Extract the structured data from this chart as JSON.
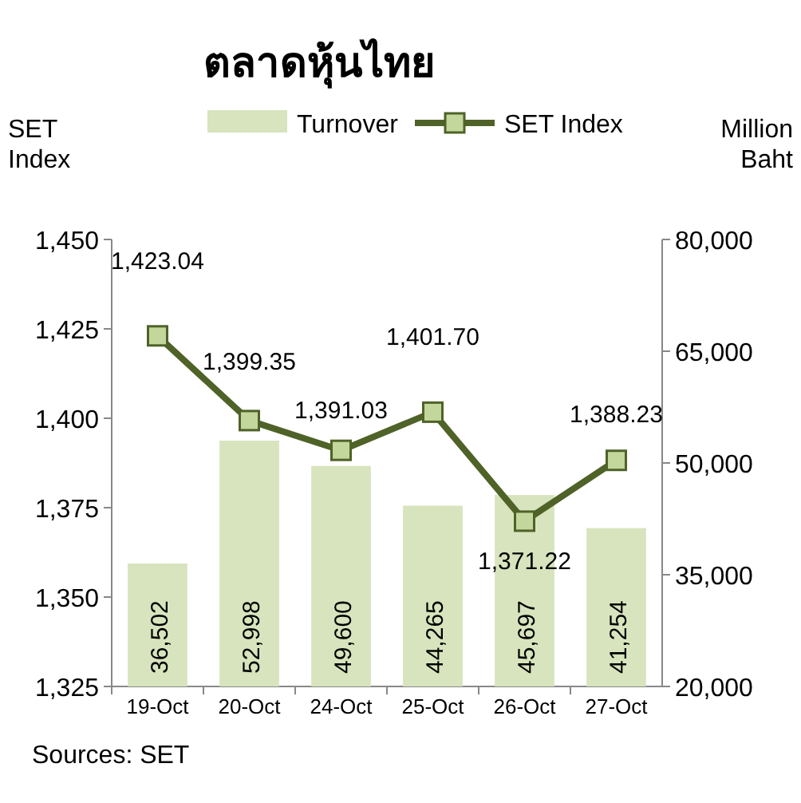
{
  "chart_data": {
    "type": "bar",
    "title": "ตลาดหุ้นไทย",
    "ylabel": "SET Index",
    "y2label": "Million Baht",
    "categories": [
      "19-Oct",
      "20-Oct",
      "24-Oct",
      "25-Oct",
      "26-Oct",
      "27-Oct"
    ],
    "series": [
      {
        "name": "Turnover",
        "axis": "y2",
        "color": "#d7e4bd",
        "values": [
          36502,
          52998,
          49600,
          44265,
          45697,
          41254
        ],
        "value_labels": [
          "36,502",
          "52,998",
          "49,600",
          "44,265",
          "45,697",
          "41,254"
        ]
      },
      {
        "name": "SET Index",
        "type": "line",
        "color": "#4f6228",
        "values": [
          1423.04,
          1399.35,
          1391.03,
          1401.7,
          1371.22,
          1388.23
        ],
        "value_labels": [
          "1,423.04",
          "1,399.35",
          "1,391.03",
          "1,401.70",
          "1,371.22",
          "1,388.23"
        ]
      }
    ],
    "ylim": [
      1325,
      1450
    ],
    "yticks": [
      {
        "value": 1325,
        "label": "1,325"
      },
      {
        "value": 1350,
        "label": "1,350"
      },
      {
        "value": 1375,
        "label": "1,375"
      },
      {
        "value": 1400,
        "label": "1,400"
      },
      {
        "value": 1425,
        "label": "1,425"
      },
      {
        "value": 1450,
        "label": "1,450"
      }
    ],
    "y2lim": [
      20000,
      80000
    ],
    "y2ticks": [
      {
        "value": 20000,
        "label": "20,000"
      },
      {
        "value": 35000,
        "label": "35,000"
      },
      {
        "value": 50000,
        "label": "50,000"
      },
      {
        "value": 65000,
        "label": "65,000"
      },
      {
        "value": 80000,
        "label": "80,000"
      }
    ],
    "legend": "top",
    "marker": "square",
    "line_style": "solid",
    "annotations": [
      "Sources: SET"
    ]
  }
}
